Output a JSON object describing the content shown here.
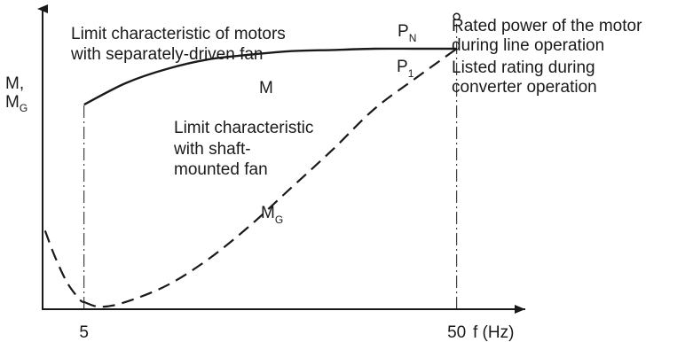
{
  "chart_data": {
    "type": "line",
    "xlabel": "f (Hz)",
    "ylabel": "M,",
    "ylabel_sub": "M",
    "ylabel_sub_index": "G",
    "x_ticks": [
      {
        "value": 5,
        "label": "5"
      },
      {
        "value": 50,
        "label": "50"
      }
    ],
    "series": [
      {
        "name": "M",
        "style": "solid",
        "label": "M",
        "description": "Limit characteristic of motors with separately-driven fan",
        "points": [
          [
            5,
            0.86
          ],
          [
            10,
            0.95
          ],
          [
            15,
            1.01
          ],
          [
            20,
            1.05
          ],
          [
            25,
            1.07
          ],
          [
            30,
            1.085
          ],
          [
            35,
            1.09
          ],
          [
            40,
            1.095
          ],
          [
            45,
            1.095
          ],
          [
            50,
            1.095
          ]
        ]
      },
      {
        "name": "MG",
        "style": "dashed",
        "label": "M",
        "label_sub": "G",
        "description": "Limit characteristic with shaft-mounted fan",
        "points": [
          [
            5,
            0.03
          ],
          [
            7,
            0.01
          ],
          [
            10,
            0.03
          ],
          [
            15,
            0.1
          ],
          [
            20,
            0.21
          ],
          [
            25,
            0.35
          ],
          [
            30,
            0.51
          ],
          [
            35,
            0.67
          ],
          [
            40,
            0.84
          ],
          [
            45,
            0.97
          ],
          [
            50,
            1.095
          ]
        ]
      }
    ],
    "initial_segment": {
      "style": "dashed",
      "points": [
        [
          0.3,
          0.33
        ],
        [
          1.5,
          0.22
        ],
        [
          3,
          0.11
        ],
        [
          4.5,
          0.04
        ],
        [
          5,
          0.03
        ]
      ]
    },
    "vertical_markers": [
      {
        "x": 5,
        "style": "dash-dot",
        "y_from": 0.0,
        "y_to": 0.86
      },
      {
        "x": 50,
        "style": "dash-dot",
        "y_from": 0.0,
        "y_to": 1.2
      }
    ],
    "point_markers": [
      {
        "name": "PN",
        "label": "P",
        "label_sub": "N",
        "x": 50,
        "y": 1.23,
        "marker": "open-circle",
        "legend_text": "Rated power of the motor during line operation"
      },
      {
        "name": "P1",
        "label": "P",
        "label_sub": "1",
        "x": 50,
        "y": 1.095,
        "marker": "none",
        "legend_text": "Listed rating during converter operation"
      }
    ],
    "annotations": {
      "m_curve_text_1": "Limit characteristic of motors",
      "m_curve_text_2": "with separately-driven fan",
      "mg_curve_text_1": "Limit characteristic",
      "mg_curve_text_2": "with shaft-",
      "mg_curve_text_3": "mounted fan",
      "pn_legend_1": "Rated power of the motor",
      "pn_legend_2": "during line operation",
      "p1_legend_1": "Listed rating during",
      "p1_legend_2": "converter operation"
    },
    "xlim": [
      0,
      60
    ],
    "ylim": [
      0,
      1.3
    ],
    "grid": false
  }
}
